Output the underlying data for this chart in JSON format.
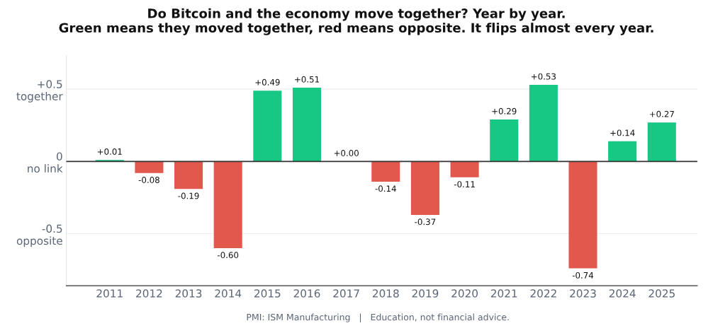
{
  "chart_data": {
    "type": "bar",
    "title": "Do Bitcoin and the economy move together? Year by year.\nGreen means they moved together, red means opposite. It flips almost every year.",
    "categories": [
      "2011",
      "2012",
      "2013",
      "2014",
      "2015",
      "2016",
      "2017",
      "2018",
      "2019",
      "2020",
      "2021",
      "2022",
      "2023",
      "2024",
      "2025"
    ],
    "values": [
      0.01,
      -0.08,
      -0.19,
      -0.6,
      0.49,
      0.51,
      0.0,
      -0.14,
      -0.37,
      -0.11,
      0.29,
      0.53,
      -0.74,
      0.14,
      0.27
    ],
    "colors": [
      "#17c784",
      "#e2584d",
      "#e2584d",
      "#e2584d",
      "#17c784",
      "#17c784",
      "#17c784",
      "#e2584d",
      "#e2584d",
      "#e2584d",
      "#17c784",
      "#17c784",
      "#e2584d",
      "#17c784",
      "#17c784"
    ],
    "value_labels": [
      "+0.01",
      "-0.08",
      "-0.19",
      "-0.60",
      "+0.49",
      "+0.51",
      "+0.00",
      "-0.14",
      "-0.37",
      "-0.11",
      "+0.29",
      "+0.53",
      "-0.74",
      "+0.14",
      "+0.27"
    ],
    "ylim": [
      -0.86,
      0.73
    ],
    "yticks": [
      {
        "value": 0.5,
        "label": "+0.5\ntogether"
      },
      {
        "value": 0,
        "label": "0\nno link"
      },
      {
        "value": -0.5,
        "label": "-0.5\nopposite"
      }
    ],
    "ref_lines": [
      {
        "axis": "y",
        "value": 0,
        "color": "#333333"
      }
    ],
    "grid": "y",
    "legend": false,
    "annotations": [
      "PMI: ISM Manufacturing   |   Education, not financial advice."
    ]
  }
}
